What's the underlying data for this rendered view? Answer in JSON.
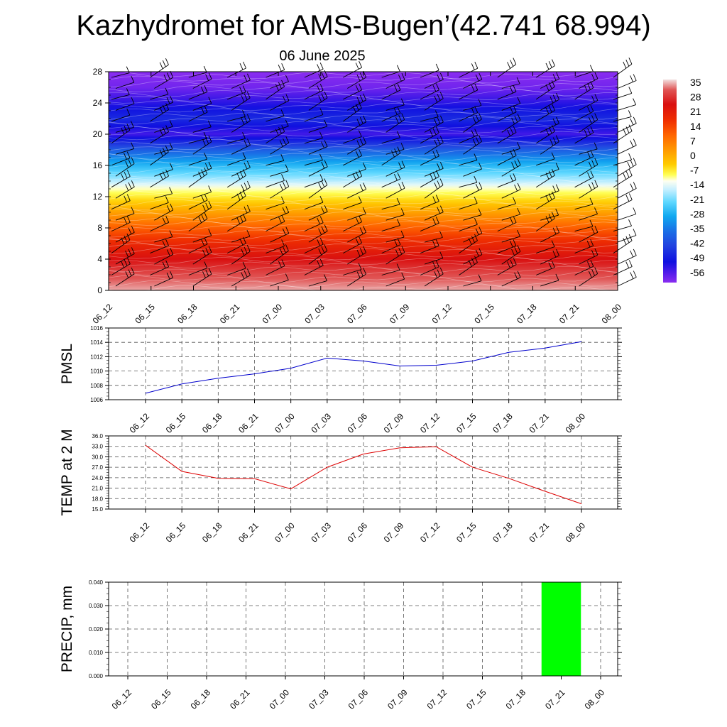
{
  "title": "Kazhydromet for AMS-Bugen’(42.741 68.994)",
  "subtitle": "06 June 2025",
  "chart_data": [
    {
      "type": "heatmap",
      "name": "vertical-profile",
      "x_ticks": [
        "06_12",
        "06_15",
        "06_18",
        "06_21",
        "07_00",
        "07_03",
        "07_06",
        "07_09",
        "07_12",
        "07_15",
        "07_18",
        "07_21",
        "08_00"
      ],
      "ylim": [
        0,
        28
      ],
      "y_ticks": [
        0,
        4,
        8,
        12,
        16,
        20,
        24,
        28
      ],
      "colorbar_labels": [
        "35",
        "28",
        "21",
        "14",
        "7",
        "0",
        "-7",
        "-14",
        "-21",
        "-28",
        "-35",
        "-42",
        "-49",
        "-56"
      ],
      "colorbar_range": [
        -60,
        38
      ],
      "color_stops": [
        {
          "v": 38,
          "c": "#f2e0e0"
        },
        {
          "v": 33,
          "c": "#e05555"
        },
        {
          "v": 26,
          "c": "#d91010"
        },
        {
          "v": 18,
          "c": "#f03000"
        },
        {
          "v": 11,
          "c": "#ff6600"
        },
        {
          "v": 4,
          "c": "#ff9900"
        },
        {
          "v": -3,
          "c": "#ffcc00"
        },
        {
          "v": -8,
          "c": "#ffff55"
        },
        {
          "v": -11,
          "c": "#fffff0"
        },
        {
          "v": -15,
          "c": "#c8f0ff"
        },
        {
          "v": -21,
          "c": "#60d8ff"
        },
        {
          "v": -28,
          "c": "#10a8f0"
        },
        {
          "v": -35,
          "c": "#1a70e6"
        },
        {
          "v": -42,
          "c": "#2244e0"
        },
        {
          "v": -50,
          "c": "#1010e0"
        },
        {
          "v": -56,
          "c": "#5a1eeb"
        },
        {
          "v": -60,
          "c": "#8a2df0"
        }
      ],
      "temperature_profile": [
        {
          "level": 0,
          "t": 36
        },
        {
          "level": 2,
          "t": 32
        },
        {
          "level": 4,
          "t": 26
        },
        {
          "level": 6,
          "t": 20
        },
        {
          "level": 8,
          "t": 12
        },
        {
          "level": 10,
          "t": 3
        },
        {
          "level": 12,
          "t": -6
        },
        {
          "level": 13,
          "t": -10
        },
        {
          "level": 14,
          "t": -16
        },
        {
          "level": 16,
          "t": -26
        },
        {
          "level": 18,
          "t": -38
        },
        {
          "level": 20,
          "t": -54
        },
        {
          "level": 22,
          "t": -46
        },
        {
          "level": 24,
          "t": -52
        },
        {
          "level": 26,
          "t": -58
        },
        {
          "level": 28,
          "t": -60
        }
      ],
      "wind_barbs": true
    },
    {
      "type": "line",
      "name": "pmsl",
      "ylabel": "PMSL",
      "categories": [
        "06_12",
        "06_15",
        "06_18",
        "06_21",
        "07_00",
        "07_03",
        "07_06",
        "07_09",
        "07_12",
        "07_15",
        "07_18",
        "07_21",
        "08_00"
      ],
      "values": [
        1006.9,
        1008.2,
        1009.0,
        1009.6,
        1010.4,
        1011.8,
        1011.4,
        1010.7,
        1010.8,
        1011.4,
        1012.6,
        1013.2,
        1014.1
      ],
      "ylim": [
        1006,
        1016
      ],
      "y_ticks": [
        "1006",
        "1008",
        "1010",
        "1012",
        "1014",
        "1016"
      ],
      "color": "#0000cc",
      "grid": true
    },
    {
      "type": "line",
      "name": "temp2m",
      "ylabel": "TEMP at 2 M",
      "categories": [
        "06_12",
        "06_15",
        "06_18",
        "06_21",
        "07_00",
        "07_03",
        "07_06",
        "07_09",
        "07_12",
        "07_15",
        "07_18",
        "07_21",
        "08_00"
      ],
      "values": [
        33.3,
        25.8,
        23.8,
        23.7,
        20.8,
        27.0,
        30.8,
        32.6,
        32.9,
        27.0,
        23.8,
        20.1,
        16.5
      ],
      "ylim": [
        15,
        36
      ],
      "y_ticks": [
        "15.0",
        "18.0",
        "21.0",
        "24.0",
        "27.0",
        "30.0",
        "33.0",
        "36.0"
      ],
      "color": "#dd0000",
      "grid": true
    },
    {
      "type": "bar",
      "name": "precip",
      "ylabel": "PRECIP, mm",
      "categories": [
        "06_12",
        "06_15",
        "06_18",
        "06_21",
        "07_00",
        "07_03",
        "07_06",
        "07_09",
        "07_12",
        "07_15",
        "07_18",
        "07_21",
        "08_00"
      ],
      "values": [
        0,
        0,
        0,
        0,
        0,
        0,
        0,
        0,
        0,
        0,
        0,
        0.04,
        0
      ],
      "ylim": [
        0,
        0.04
      ],
      "y_ticks": [
        "0.000",
        "0.010",
        "0.020",
        "0.030",
        "0.040"
      ],
      "color": "#00ff00",
      "grid": true
    }
  ]
}
